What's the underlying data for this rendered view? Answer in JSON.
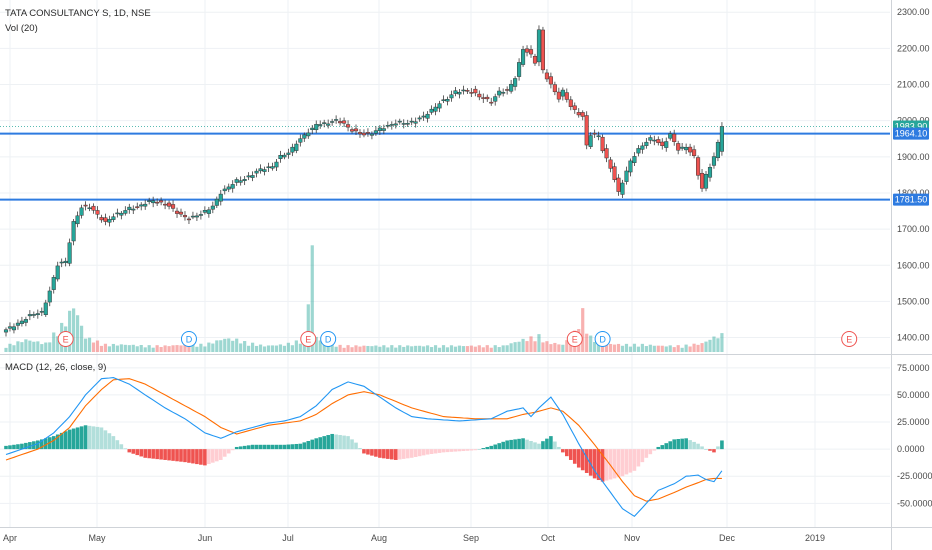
{
  "header": {
    "title": "TATA CONSULTANCY S, 1D, NSE",
    "volume_label": "Vol (20)",
    "macd_label": "MACD (12, 26, close, 9)"
  },
  "colors": {
    "up": "#26a69a",
    "down": "#ef5350",
    "level_line": "#2e7be0",
    "macd_line": "#2196f3",
    "signal_line": "#ff6d00",
    "grid": "#eef1f4",
    "axis_text": "#4a4a4a",
    "earnings_marker": "#ef5350",
    "dividend_marker": "#2196f3"
  },
  "chart_data": [
    {
      "type": "candlestick",
      "title": "TATA CONSULTANCY S, 1D, NSE",
      "ylim": [
        1360,
        2320
      ],
      "y_ticks": [
        "2300.00",
        "2200.00",
        "2100.00",
        "2000.00",
        "1900.00",
        "1800.00",
        "1700.00",
        "1600.00",
        "1500.00",
        "1400.00"
      ],
      "x_ticks": [
        "Apr",
        "May",
        "Jun",
        "Jul",
        "Aug",
        "Sep",
        "Oct",
        "Nov",
        "Dec",
        "2019"
      ],
      "price_labels": [
        {
          "text": "1983.90",
          "value": 1983.9,
          "kind": "last"
        },
        {
          "text": "1964.10",
          "value": 1964.1,
          "kind": "level"
        },
        {
          "text": "1781.50",
          "value": 1781.5,
          "kind": "level"
        }
      ],
      "horizontal_levels": [
        1964.1,
        1781.5
      ],
      "markers": [
        {
          "text": "E",
          "type": "earnings",
          "date_index": 15
        },
        {
          "text": "D",
          "type": "dividend",
          "date_index": 46
        },
        {
          "text": "E",
          "type": "earnings",
          "date_index": 76
        },
        {
          "text": "D",
          "type": "dividend",
          "date_index": 81
        },
        {
          "text": "E",
          "type": "earnings",
          "date_index": 143
        },
        {
          "text": "D",
          "type": "dividend",
          "date_index": 150
        },
        {
          "text": "E",
          "type": "earnings",
          "date_index": 212
        }
      ],
      "close_points": [
        [
          0,
          1420
        ],
        [
          3,
          1440
        ],
        [
          6,
          1460
        ],
        [
          9,
          1470
        ],
        [
          11,
          1530
        ],
        [
          13,
          1600
        ],
        [
          15,
          1610
        ],
        [
          17,
          1720
        ],
        [
          19,
          1760
        ],
        [
          21,
          1760
        ],
        [
          23,
          1740
        ],
        [
          25,
          1720
        ],
        [
          27,
          1735
        ],
        [
          29,
          1745
        ],
        [
          31,
          1760
        ],
        [
          33,
          1760
        ],
        [
          37,
          1780
        ],
        [
          40,
          1770
        ],
        [
          43,
          1745
        ],
        [
          46,
          1730
        ],
        [
          49,
          1740
        ],
        [
          52,
          1765
        ],
        [
          54,
          1800
        ],
        [
          56,
          1815
        ],
        [
          58,
          1835
        ],
        [
          60,
          1840
        ],
        [
          62,
          1850
        ],
        [
          64,
          1865
        ],
        [
          67,
          1875
        ],
        [
          69,
          1900
        ],
        [
          71,
          1910
        ],
        [
          73,
          1940
        ],
        [
          75,
          1960
        ],
        [
          77,
          1975
        ],
        [
          78,
          1990
        ],
        [
          81,
          1995
        ],
        [
          83,
          2000
        ],
        [
          85,
          1990
        ],
        [
          87,
          1975
        ],
        [
          90,
          1960
        ],
        [
          92,
          1965
        ],
        [
          94,
          1980
        ],
        [
          96,
          1985
        ],
        [
          99,
          1995
        ],
        [
          101,
          1995
        ],
        [
          103,
          2000
        ],
        [
          105,
          2010
        ],
        [
          107,
          2030
        ],
        [
          109,
          2050
        ],
        [
          111,
          2060
        ],
        [
          113,
          2080
        ],
        [
          115,
          2085
        ],
        [
          117,
          2080
        ],
        [
          119,
          2065
        ],
        [
          122,
          2055
        ],
        [
          124,
          2080
        ],
        [
          126,
          2080
        ],
        [
          128,
          2120
        ],
        [
          130,
          2200
        ],
        [
          132,
          2180
        ],
        [
          133,
          2160
        ],
        [
          134,
          2250
        ],
        [
          135,
          2140
        ],
        [
          137,
          2100
        ],
        [
          139,
          2060
        ],
        [
          140,
          2080
        ],
        [
          142,
          2040
        ],
        [
          144,
          2020
        ],
        [
          145,
          2010
        ],
        [
          146,
          1930
        ],
        [
          147,
          1960
        ],
        [
          149,
          1960
        ],
        [
          150,
          1920
        ],
        [
          152,
          1870
        ],
        [
          154,
          1800
        ],
        [
          155,
          1830
        ],
        [
          157,
          1890
        ],
        [
          159,
          1920
        ],
        [
          161,
          1940
        ],
        [
          162,
          1950
        ],
        [
          163,
          1950
        ],
        [
          165,
          1930
        ],
        [
          167,
          1960
        ],
        [
          169,
          1920
        ],
        [
          171,
          1930
        ],
        [
          173,
          1900
        ],
        [
          174,
          1850
        ],
        [
          175,
          1810
        ],
        [
          176,
          1850
        ],
        [
          178,
          1900
        ],
        [
          180,
          1983.9
        ]
      ],
      "volume_points": [
        [
          0,
          0.05
        ],
        [
          5,
          0.1
        ],
        [
          10,
          0.07
        ],
        [
          15,
          0.25
        ],
        [
          17,
          0.38
        ],
        [
          18,
          0.3
        ],
        [
          20,
          0.12
        ],
        [
          25,
          0.06
        ],
        [
          30,
          0.06
        ],
        [
          35,
          0.05
        ],
        [
          40,
          0.05
        ],
        [
          45,
          0.06
        ],
        [
          50,
          0.06
        ],
        [
          55,
          0.11
        ],
        [
          58,
          0.1
        ],
        [
          60,
          0.08
        ],
        [
          65,
          0.05
        ],
        [
          70,
          0.06
        ],
        [
          75,
          0.1
        ],
        [
          77,
          0.82
        ],
        [
          78,
          0.13
        ],
        [
          80,
          0.06
        ],
        [
          85,
          0.05
        ],
        [
          90,
          0.05
        ],
        [
          95,
          0.05
        ],
        [
          100,
          0.05
        ],
        [
          105,
          0.05
        ],
        [
          110,
          0.05
        ],
        [
          115,
          0.05
        ],
        [
          120,
          0.05
        ],
        [
          125,
          0.05
        ],
        [
          130,
          0.1
        ],
        [
          134,
          0.13
        ],
        [
          136,
          0.08
        ],
        [
          140,
          0.06
        ],
        [
          143,
          0.16
        ],
        [
          145,
          0.32
        ],
        [
          147,
          0.12
        ],
        [
          150,
          0.07
        ],
        [
          155,
          0.06
        ],
        [
          160,
          0.06
        ],
        [
          165,
          0.05
        ],
        [
          170,
          0.05
        ],
        [
          175,
          0.07
        ],
        [
          178,
          0.12
        ],
        [
          180,
          0.14
        ]
      ],
      "xlim": [
        0,
        221
      ]
    },
    {
      "type": "macd",
      "title": "MACD (12, 26, close, 9)",
      "ylim": [
        -70,
        85
      ],
      "y_ticks": [
        "75.0000",
        "50.0000",
        "25.0000",
        "0.0000",
        "-25.0000",
        "-50.0000"
      ],
      "y_tick_values": [
        75,
        50,
        25,
        0,
        -25,
        -50
      ],
      "current_values": [
        8,
        -20,
        -27
      ],
      "macd_points": [
        [
          0,
          -5
        ],
        [
          4,
          0
        ],
        [
          8,
          5
        ],
        [
          12,
          15
        ],
        [
          16,
          30
        ],
        [
          20,
          50
        ],
        [
          24,
          65
        ],
        [
          27,
          66
        ],
        [
          31,
          60
        ],
        [
          35,
          50
        ],
        [
          40,
          38
        ],
        [
          45,
          28
        ],
        [
          50,
          15
        ],
        [
          54,
          10
        ],
        [
          58,
          16
        ],
        [
          62,
          20
        ],
        [
          66,
          24
        ],
        [
          70,
          26
        ],
        [
          74,
          30
        ],
        [
          78,
          40
        ],
        [
          82,
          55
        ],
        [
          86,
          62
        ],
        [
          90,
          58
        ],
        [
          94,
          48
        ],
        [
          98,
          38
        ],
        [
          102,
          30
        ],
        [
          106,
          28
        ],
        [
          110,
          27
        ],
        [
          114,
          26
        ],
        [
          118,
          27
        ],
        [
          122,
          28
        ],
        [
          126,
          35
        ],
        [
          130,
          38
        ],
        [
          132,
          30
        ],
        [
          134,
          38
        ],
        [
          137,
          48
        ],
        [
          140,
          32
        ],
        [
          144,
          5
        ],
        [
          148,
          -20
        ],
        [
          152,
          -40
        ],
        [
          155,
          -55
        ],
        [
          158,
          -62
        ],
        [
          161,
          -50
        ],
        [
          164,
          -38
        ],
        [
          168,
          -32
        ],
        [
          171,
          -25
        ],
        [
          174,
          -24
        ],
        [
          176,
          -28
        ],
        [
          178,
          -30
        ],
        [
          180,
          -20
        ]
      ],
      "signal_points": [
        [
          0,
          -10
        ],
        [
          4,
          -5
        ],
        [
          8,
          0
        ],
        [
          12,
          8
        ],
        [
          16,
          20
        ],
        [
          20,
          40
        ],
        [
          24,
          55
        ],
        [
          27,
          64
        ],
        [
          31,
          65
        ],
        [
          35,
          60
        ],
        [
          40,
          50
        ],
        [
          45,
          40
        ],
        [
          50,
          30
        ],
        [
          54,
          20
        ],
        [
          58,
          14
        ],
        [
          62,
          18
        ],
        [
          66,
          22
        ],
        [
          70,
          24
        ],
        [
          74,
          26
        ],
        [
          78,
          32
        ],
        [
          82,
          42
        ],
        [
          86,
          50
        ],
        [
          90,
          53
        ],
        [
          94,
          50
        ],
        [
          98,
          44
        ],
        [
          102,
          38
        ],
        [
          106,
          34
        ],
        [
          110,
          30
        ],
        [
          114,
          29
        ],
        [
          118,
          28
        ],
        [
          122,
          28
        ],
        [
          126,
          28
        ],
        [
          130,
          32
        ],
        [
          133,
          34
        ],
        [
          137,
          38
        ],
        [
          140,
          35
        ],
        [
          144,
          22
        ],
        [
          148,
          4
        ],
        [
          152,
          -15
        ],
        [
          155,
          -30
        ],
        [
          158,
          -43
        ],
        [
          161,
          -48
        ],
        [
          164,
          -46
        ],
        [
          168,
          -40
        ],
        [
          171,
          -35
        ],
        [
          174,
          -31
        ],
        [
          176,
          -28
        ],
        [
          178,
          -27
        ],
        [
          180,
          -27
        ]
      ],
      "histogram_points": [
        [
          0,
          3
        ],
        [
          4,
          5
        ],
        [
          8,
          8
        ],
        [
          12,
          12
        ],
        [
          16,
          18
        ],
        [
          20,
          22
        ],
        [
          24,
          20
        ],
        [
          27,
          12
        ],
        [
          31,
          -3
        ],
        [
          35,
          -8
        ],
        [
          40,
          -10
        ],
        [
          45,
          -12
        ],
        [
          50,
          -15
        ],
        [
          54,
          -10
        ],
        [
          58,
          2
        ],
        [
          62,
          4
        ],
        [
          66,
          4
        ],
        [
          70,
          4
        ],
        [
          74,
          5
        ],
        [
          78,
          10
        ],
        [
          82,
          14
        ],
        [
          86,
          12
        ],
        [
          88,
          6
        ],
        [
          90,
          -4
        ],
        [
          94,
          -8
        ],
        [
          98,
          -10
        ],
        [
          102,
          -8
        ],
        [
          106,
          -5
        ],
        [
          110,
          -3
        ],
        [
          114,
          -2
        ],
        [
          118,
          -1
        ],
        [
          122,
          3
        ],
        [
          126,
          8
        ],
        [
          130,
          10
        ],
        [
          134,
          5
        ],
        [
          137,
          12
        ],
        [
          140,
          -3
        ],
        [
          144,
          -17
        ],
        [
          148,
          -27
        ],
        [
          150,
          -30
        ],
        [
          152,
          -28
        ],
        [
          155,
          -25
        ],
        [
          158,
          -20
        ],
        [
          161,
          -8
        ],
        [
          164,
          2
        ],
        [
          168,
          9
        ],
        [
          171,
          10
        ],
        [
          174,
          5
        ],
        [
          176,
          0
        ],
        [
          178,
          -3
        ],
        [
          180,
          8
        ]
      ],
      "xlim": [
        0,
        221
      ]
    }
  ]
}
